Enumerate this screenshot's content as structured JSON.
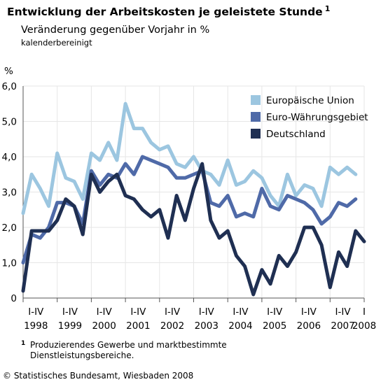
{
  "title": "Entwicklung der Arbeitskosten je geleistete Stunde",
  "title_superscript": "1",
  "subtitle": "Veränderung gegenüber Vorjahr in %",
  "subtitle2": "kalenderbereinigt",
  "y_unit": "%",
  "footnote_mark": "1",
  "footnote_line1": "Produzierendes Gewerbe und marktbestimmte",
  "footnote_line2": "Dienstleistungsbereiche.",
  "source": "© Statistisches Bundesamt, Wiesbaden 2008",
  "colors": {
    "eu": "#9cc6e0",
    "euro": "#4f6aa8",
    "de": "#1f2f52",
    "grid": "#e6e6e6",
    "axis": "#555555"
  },
  "chart_data": {
    "type": "line",
    "ylim": [
      0,
      6
    ],
    "yticks": [
      "6,0",
      "5,0",
      "4,0",
      "3,0",
      "2,0",
      "1,0",
      "0"
    ],
    "ytick_values": [
      6,
      5,
      4,
      3,
      2,
      1,
      0
    ],
    "x_period_labels": [
      "I-IV",
      "I-IV",
      "I-IV",
      "I-IV",
      "I-IV",
      "I-IV",
      "I-IV",
      "I-IV",
      "I-IV",
      "I-IV",
      "I"
    ],
    "x_year_labels": [
      "1998",
      "1999",
      "2000",
      "2001",
      "2002",
      "2003",
      "2004",
      "2005",
      "2006",
      "2007",
      "2008"
    ],
    "x_quarters": [
      "1998Q1",
      "1998Q2",
      "1998Q3",
      "1998Q4",
      "1999Q1",
      "1999Q2",
      "1999Q3",
      "1999Q4",
      "2000Q1",
      "2000Q2",
      "2000Q3",
      "2000Q4",
      "2001Q1",
      "2001Q2",
      "2001Q3",
      "2001Q4",
      "2002Q1",
      "2002Q2",
      "2002Q3",
      "2002Q4",
      "2003Q1",
      "2003Q2",
      "2003Q3",
      "2003Q4",
      "2004Q1",
      "2004Q2",
      "2004Q3",
      "2004Q4",
      "2005Q1",
      "2005Q2",
      "2005Q3",
      "2005Q4",
      "2006Q1",
      "2006Q2",
      "2006Q3",
      "2006Q4",
      "2007Q1",
      "2007Q2",
      "2007Q3",
      "2007Q4",
      "2008Q1"
    ],
    "legend_position": "top-right",
    "grid": true,
    "series": [
      {
        "name": "Europäische Union",
        "color_key": "eu",
        "values": [
          2.4,
          3.5,
          3.1,
          2.6,
          4.1,
          3.4,
          3.3,
          2.8,
          4.1,
          3.9,
          4.4,
          3.9,
          5.5,
          4.8,
          4.8,
          4.4,
          4.2,
          4.3,
          3.8,
          3.7,
          4.0,
          3.6,
          3.5,
          3.2,
          3.9,
          3.2,
          3.3,
          3.6,
          3.4,
          2.9,
          2.6,
          3.5,
          2.9,
          3.2,
          3.1,
          2.6,
          3.7,
          3.5,
          3.7,
          3.5,
          null
        ]
      },
      {
        "name": "Euro-Währungsgebiet",
        "color_key": "euro",
        "values": [
          1.0,
          1.8,
          1.7,
          2.0,
          2.7,
          2.7,
          2.6,
          2.1,
          3.6,
          3.2,
          3.5,
          3.4,
          3.8,
          3.5,
          4.0,
          3.9,
          3.8,
          3.7,
          3.4,
          3.4,
          3.5,
          3.6,
          2.7,
          2.6,
          2.9,
          2.3,
          2.4,
          2.3,
          3.1,
          2.6,
          2.5,
          2.9,
          2.8,
          2.7,
          2.5,
          2.1,
          2.3,
          2.7,
          2.6,
          2.8,
          null
        ]
      },
      {
        "name": "Deutschland",
        "color_key": "de",
        "values": [
          0.2,
          1.9,
          1.9,
          1.9,
          2.2,
          2.8,
          2.6,
          1.8,
          3.5,
          3.0,
          3.3,
          3.5,
          2.9,
          2.8,
          2.5,
          2.3,
          2.5,
          1.7,
          2.9,
          2.2,
          3.1,
          3.8,
          2.2,
          1.7,
          1.9,
          1.2,
          0.9,
          0.1,
          0.8,
          0.4,
          1.2,
          0.9,
          1.3,
          2.0,
          2.0,
          1.5,
          0.3,
          1.3,
          0.9,
          1.9,
          1.6
        ]
      }
    ]
  }
}
